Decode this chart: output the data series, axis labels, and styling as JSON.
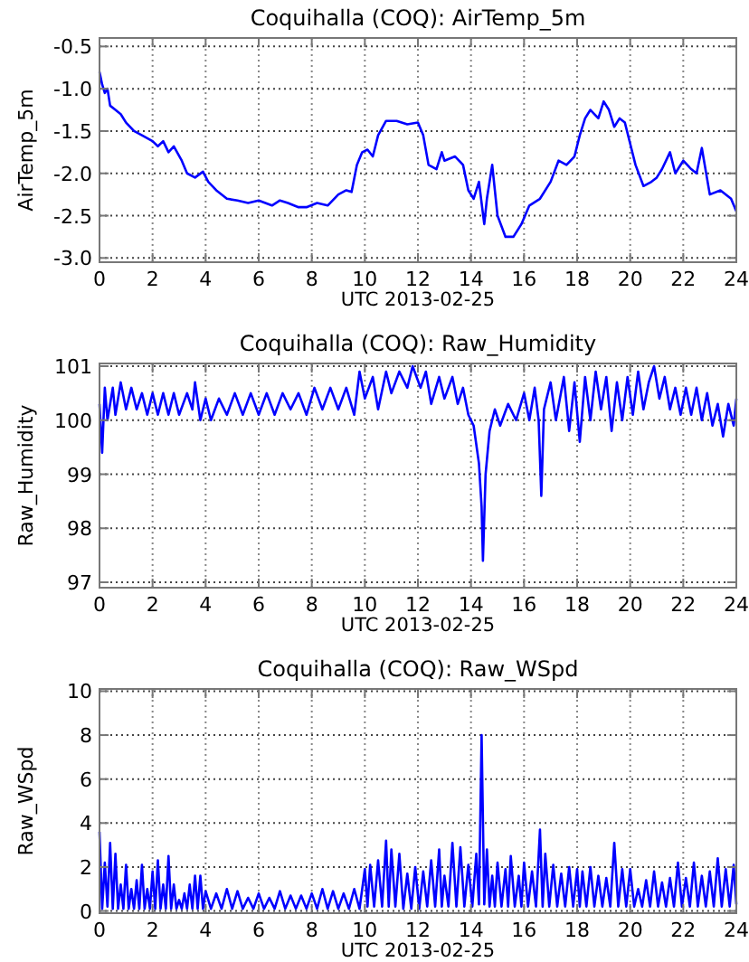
{
  "chart_data": [
    {
      "type": "line",
      "title": "Coquihalla (COQ): AirTemp_5m",
      "xlabel": "UTC 2013-02-25",
      "ylabel": "AirTemp_5m",
      "xlim": [
        0,
        24
      ],
      "xticks": [
        0,
        2,
        4,
        6,
        8,
        10,
        12,
        14,
        16,
        18,
        20,
        22,
        24
      ],
      "ylim": [
        -3.05,
        -0.4
      ],
      "yticks": [
        -0.5,
        {
          "value": -1,
          "label": "-1.0"
        },
        -1.5,
        {
          "value": -2,
          "label": "-2.0"
        },
        -2.5,
        {
          "value": -3,
          "label": "-3.0"
        }
      ],
      "grid": true,
      "line_style": "solid",
      "x": [
        0,
        0.1,
        0.2,
        0.3,
        0.4,
        0.6,
        0.8,
        1,
        1.3,
        1.6,
        2,
        2.2,
        2.4,
        2.6,
        2.8,
        3.1,
        3.3,
        3.6,
        3.9,
        4.1,
        4.4,
        4.8,
        5.2,
        5.6,
        6,
        6.5,
        6.8,
        7.1,
        7.5,
        7.8,
        8.2,
        8.6,
        9,
        9.3,
        9.5,
        9.7,
        9.9,
        10.1,
        10.3,
        10.5,
        10.8,
        11.2,
        11.6,
        12,
        12.2,
        12.4,
        12.7,
        12.9,
        13,
        13.4,
        13.7,
        13.9,
        14.1,
        14.3,
        14.5,
        14.6,
        14.8,
        15,
        15.3,
        15.6,
        15.9,
        16.2,
        16.6,
        17,
        17.3,
        17.6,
        17.9,
        18.1,
        18.3,
        18.5,
        18.8,
        19,
        19.2,
        19.4,
        19.6,
        19.8,
        20,
        20.2,
        20.5,
        20.8,
        21,
        21.2,
        21.5,
        21.7,
        22,
        22.3,
        22.5,
        22.7,
        23,
        23.4,
        23.8,
        24
      ],
      "series": [
        {
          "color": "#0000ff",
          "values": [
            -0.8,
            -0.95,
            -1.05,
            -1.0,
            -1.2,
            -1.25,
            -1.3,
            -1.4,
            -1.5,
            -1.55,
            -1.62,
            -1.68,
            -1.62,
            -1.75,
            -1.68,
            -1.85,
            -2.0,
            -2.05,
            -1.98,
            -2.1,
            -2.2,
            -2.3,
            -2.32,
            -2.35,
            -2.32,
            -2.38,
            -2.32,
            -2.35,
            -2.4,
            -2.4,
            -2.35,
            -2.38,
            -2.25,
            -2.2,
            -2.22,
            -1.9,
            -1.75,
            -1.72,
            -1.8,
            -1.55,
            -1.38,
            -1.38,
            -1.42,
            -1.4,
            -1.55,
            -1.9,
            -1.95,
            -1.75,
            -1.85,
            -1.8,
            -1.9,
            -2.2,
            -2.3,
            -2.1,
            -2.6,
            -2.3,
            -1.9,
            -2.5,
            -2.75,
            -2.75,
            -2.6,
            -2.38,
            -2.3,
            -2.1,
            -1.85,
            -1.9,
            -1.8,
            -1.55,
            -1.35,
            -1.25,
            -1.35,
            -1.15,
            -1.25,
            -1.45,
            -1.35,
            -1.4,
            -1.65,
            -1.9,
            -2.15,
            -2.1,
            -2.05,
            -1.95,
            -1.75,
            -2.0,
            -1.85,
            -1.95,
            -2.0,
            -1.7,
            -2.25,
            -2.2,
            -2.3,
            -2.45
          ]
        }
      ]
    },
    {
      "type": "line",
      "title": "Coquihalla (COQ): Raw_Humidity",
      "xlabel": "UTC 2013-02-25",
      "ylabel": "Raw_Humidity",
      "xlim": [
        0,
        24
      ],
      "xticks": [
        0,
        2,
        4,
        6,
        8,
        10,
        12,
        14,
        16,
        18,
        20,
        22,
        24
      ],
      "ylim": [
        96.9,
        101.05
      ],
      "yticks": [
        97,
        98,
        99,
        100,
        101
      ],
      "grid": true,
      "line_style": "solid",
      "x": [
        0,
        0.1,
        0.2,
        0.3,
        0.5,
        0.6,
        0.8,
        1,
        1.2,
        1.4,
        1.6,
        1.8,
        2,
        2.2,
        2.4,
        2.6,
        2.8,
        3,
        3.3,
        3.5,
        3.6,
        3.8,
        4,
        4.2,
        4.5,
        4.8,
        5.1,
        5.4,
        5.7,
        6,
        6.3,
        6.6,
        6.9,
        7.2,
        7.5,
        7.8,
        8.1,
        8.4,
        8.7,
        9,
        9.3,
        9.6,
        9.8,
        10,
        10.3,
        10.5,
        10.8,
        11,
        11.3,
        11.6,
        11.8,
        12.1,
        12.3,
        12.5,
        12.8,
        13,
        13.3,
        13.5,
        13.7,
        13.9,
        14.1,
        14.3,
        14.4,
        14.45,
        14.55,
        14.7,
        14.9,
        15.1,
        15.4,
        15.7,
        16,
        16.2,
        16.4,
        16.55,
        16.65,
        16.75,
        17,
        17.2,
        17.5,
        17.7,
        17.9,
        18.1,
        18.3,
        18.5,
        18.7,
        18.9,
        19.1,
        19.3,
        19.5,
        19.7,
        19.9,
        20.1,
        20.3,
        20.5,
        20.7,
        20.9,
        21.1,
        21.3,
        21.5,
        21.7,
        21.9,
        22.1,
        22.3,
        22.5,
        22.7,
        22.9,
        23.1,
        23.3,
        23.5,
        23.7,
        23.9,
        24
      ],
      "series": [
        {
          "color": "#0000ff",
          "values": [
            100.3,
            99.4,
            100.6,
            100.0,
            100.6,
            100.1,
            100.7,
            100.2,
            100.6,
            100.2,
            100.5,
            100.1,
            100.5,
            100.1,
            100.5,
            100.1,
            100.5,
            100.1,
            100.5,
            100.2,
            100.7,
            100.0,
            100.4,
            100.0,
            100.4,
            100.1,
            100.5,
            100.1,
            100.5,
            100.1,
            100.5,
            100.1,
            100.5,
            100.2,
            100.5,
            100.1,
            100.6,
            100.2,
            100.6,
            100.2,
            100.6,
            100.1,
            100.9,
            100.4,
            100.8,
            100.2,
            100.9,
            100.5,
            100.9,
            100.6,
            101.0,
            100.6,
            100.9,
            100.3,
            100.8,
            100.4,
            100.8,
            100.3,
            100.6,
            100.1,
            99.9,
            99.2,
            98.4,
            97.4,
            99.0,
            99.8,
            100.2,
            99.9,
            100.3,
            100.0,
            100.5,
            100.0,
            100.6,
            100.0,
            98.6,
            100.2,
            100.7,
            100.0,
            100.8,
            99.8,
            100.7,
            99.6,
            100.8,
            100.0,
            100.9,
            100.2,
            100.8,
            99.8,
            100.7,
            100.0,
            100.8,
            100.1,
            100.9,
            100.2,
            100.7,
            101.0,
            100.4,
            100.8,
            100.2,
            100.6,
            100.1,
            100.6,
            100.1,
            100.6,
            100.0,
            100.5,
            99.9,
            100.3,
            99.7,
            100.3,
            99.9,
            100.4
          ]
        }
      ]
    },
    {
      "type": "line",
      "title": "Coquihalla (COQ): Raw_WSpd",
      "xlabel": "UTC 2013-02-25",
      "ylabel": "Raw_WSpd",
      "xlim": [
        0,
        24
      ],
      "xticks": [
        0,
        2,
        4,
        6,
        8,
        10,
        12,
        14,
        16,
        18,
        20,
        22,
        24
      ],
      "ylim": [
        -0.1,
        10.1
      ],
      "yticks": [
        0,
        2,
        4,
        6,
        8,
        10
      ],
      "grid": true,
      "line_style": "solid",
      "x": [
        0,
        0.1,
        0.2,
        0.3,
        0.4,
        0.5,
        0.6,
        0.7,
        0.8,
        0.9,
        1,
        1.1,
        1.2,
        1.3,
        1.4,
        1.5,
        1.6,
        1.7,
        1.8,
        1.9,
        2,
        2.1,
        2.2,
        2.3,
        2.4,
        2.5,
        2.6,
        2.7,
        2.8,
        2.9,
        3,
        3.1,
        3.2,
        3.3,
        3.4,
        3.5,
        3.6,
        3.7,
        3.8,
        3.9,
        4,
        4.2,
        4.4,
        4.6,
        4.8,
        5,
        5.2,
        5.4,
        5.6,
        5.8,
        6,
        6.2,
        6.4,
        6.6,
        6.8,
        7,
        7.2,
        7.4,
        7.6,
        7.8,
        8,
        8.2,
        8.4,
        8.6,
        8.8,
        9,
        9.2,
        9.4,
        9.6,
        9.8,
        10,
        10.1,
        10.2,
        10.35,
        10.5,
        10.65,
        10.8,
        10.9,
        11,
        11.15,
        11.3,
        11.45,
        11.6,
        11.75,
        11.9,
        12.05,
        12.2,
        12.35,
        12.5,
        12.65,
        12.8,
        12.9,
        13,
        13.15,
        13.3,
        13.45,
        13.6,
        13.75,
        13.9,
        14.05,
        14.2,
        14.3,
        14.4,
        14.5,
        14.6,
        14.7,
        14.8,
        14.9,
        15,
        15.15,
        15.3,
        15.4,
        15.5,
        15.65,
        15.8,
        15.9,
        16,
        16.15,
        16.3,
        16.45,
        16.6,
        16.7,
        16.8,
        16.95,
        17.1,
        17.25,
        17.4,
        17.55,
        17.7,
        17.85,
        18,
        18.1,
        18.2,
        18.35,
        18.5,
        18.65,
        18.8,
        18.95,
        19.1,
        19.25,
        19.4,
        19.55,
        19.7,
        19.85,
        20,
        20.15,
        20.3,
        20.45,
        20.6,
        20.75,
        20.9,
        21.05,
        21.2,
        21.35,
        21.5,
        21.65,
        21.8,
        21.95,
        22.1,
        22.25,
        22.4,
        22.55,
        22.7,
        22.85,
        23,
        23.15,
        23.3,
        23.45,
        23.6,
        23.75,
        23.9,
        24
      ],
      "series": [
        {
          "color": "#0000ff",
          "values": [
            3.6,
            0.1,
            2.2,
            0.2,
            3.1,
            0.1,
            2.6,
            0.1,
            1.2,
            0.1,
            2.1,
            0.1,
            1.0,
            0.1,
            1.4,
            0.1,
            2.1,
            0.1,
            1.0,
            0.1,
            1.8,
            0.1,
            2.3,
            0.1,
            1.2,
            0.1,
            2.5,
            0.1,
            1.2,
            0.1,
            0.5,
            0.1,
            0.8,
            0.1,
            1.2,
            0.1,
            1.6,
            0.1,
            1.6,
            0.1,
            0.9,
            0.1,
            0.8,
            0.1,
            1.0,
            0.1,
            0.9,
            0.1,
            0.6,
            0.1,
            0.8,
            0.1,
            0.6,
            0.1,
            0.9,
            0.1,
            0.7,
            0.1,
            0.7,
            0.1,
            0.8,
            0.1,
            1.0,
            0.1,
            0.9,
            0.1,
            0.8,
            0.1,
            1.0,
            0.1,
            1.9,
            0.2,
            2.1,
            0.2,
            2.3,
            0.2,
            3.2,
            0.2,
            2.8,
            0.2,
            2.6,
            0.1,
            1.7,
            0.1,
            2.0,
            0.1,
            1.8,
            0.2,
            2.3,
            0.2,
            2.8,
            0.2,
            1.6,
            0.2,
            3.1,
            0.2,
            2.9,
            0.2,
            2.1,
            0.2,
            2.6,
            0.3,
            8.0,
            0.3,
            2.8,
            0.2,
            1.6,
            0.2,
            2.2,
            0.2,
            1.9,
            0.2,
            2.5,
            0.2,
            1.6,
            0.2,
            2.2,
            0.2,
            1.8,
            0.2,
            3.7,
            0.2,
            2.6,
            0.2,
            2.1,
            0.2,
            1.7,
            0.2,
            2.0,
            0.2,
            1.9,
            0.2,
            1.8,
            0.2,
            2.0,
            0.2,
            1.6,
            0.2,
            1.5,
            0.2,
            3.1,
            0.2,
            1.9,
            0.2,
            1.9,
            0.2,
            1.0,
            0.2,
            1.4,
            0.2,
            1.8,
            0.2,
            1.3,
            0.2,
            1.5,
            0.2,
            2.2,
            0.2,
            1.5,
            0.2,
            2.2,
            0.2,
            1.6,
            0.2,
            1.8,
            0.2,
            2.4,
            0.2,
            1.9,
            0.2,
            2.1,
            0.3
          ]
        }
      ]
    }
  ]
}
